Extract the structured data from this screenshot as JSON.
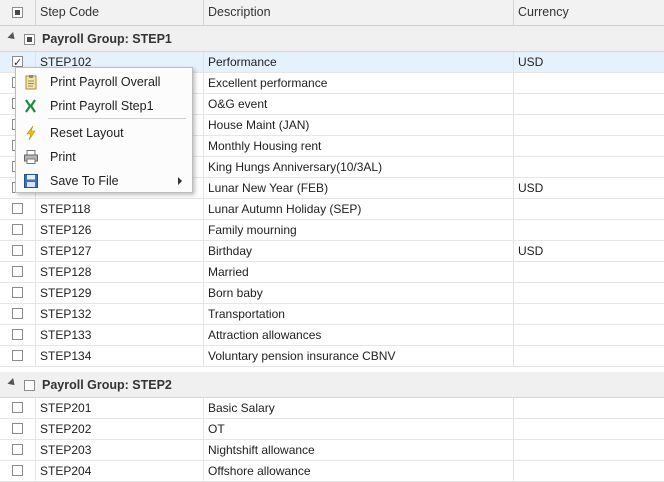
{
  "header": {
    "step_code": "Step Code",
    "description": "Description",
    "currency": "Currency"
  },
  "groups": [
    {
      "label": "Payroll Group: STEP1"
    },
    {
      "label": "Payroll Group: STEP2"
    }
  ],
  "rows1": [
    {
      "code": "STEP102",
      "desc": "Performance",
      "cur": "USD"
    },
    {
      "code": "",
      "desc": "Excellent performance",
      "cur": ""
    },
    {
      "code": "",
      "desc": "O&G event",
      "cur": ""
    },
    {
      "code": "",
      "desc": "House Maint (JAN)",
      "cur": ""
    },
    {
      "code": "",
      "desc": "Monthly Housing rent",
      "cur": ""
    },
    {
      "code": "",
      "desc": "King Hungs Anniversary(10/3AL)",
      "cur": ""
    },
    {
      "code": "",
      "desc": "Lunar New Year (FEB)",
      "cur": "USD"
    },
    {
      "code": "STEP118",
      "desc": "Lunar Autumn Holiday (SEP)",
      "cur": ""
    },
    {
      "code": "STEP126",
      "desc": "Family mourning",
      "cur": ""
    },
    {
      "code": "STEP127",
      "desc": "Birthday",
      "cur": "USD"
    },
    {
      "code": "STEP128",
      "desc": "Married",
      "cur": ""
    },
    {
      "code": "STEP129",
      "desc": "Born baby",
      "cur": ""
    },
    {
      "code": "STEP132",
      "desc": "Transportation",
      "cur": ""
    },
    {
      "code": "STEP133",
      "desc": "Attraction allowances",
      "cur": ""
    },
    {
      "code": "STEP134",
      "desc": "Voluntary pension insurance CBNV",
      "cur": ""
    }
  ],
  "rows2": [
    {
      "code": "STEP201",
      "desc": "Basic Salary",
      "cur": ""
    },
    {
      "code": "STEP202",
      "desc": "OT",
      "cur": ""
    },
    {
      "code": "STEP203",
      "desc": "Nightshift allowance",
      "cur": ""
    },
    {
      "code": "STEP204",
      "desc": "Offshore allowance",
      "cur": ""
    }
  ],
  "menu": {
    "print_overall": "Print Payroll Overall",
    "print_step1": "Print Payroll Step1",
    "reset_layout": "Reset Layout",
    "print": "Print",
    "save_to_file": "Save To File"
  },
  "icons": {
    "print_overall": "clipboard-icon",
    "print_step1": "excel-icon",
    "reset_layout": "lightning-icon",
    "print": "printer-icon",
    "save_to_file": "floppy-disk-icon"
  }
}
